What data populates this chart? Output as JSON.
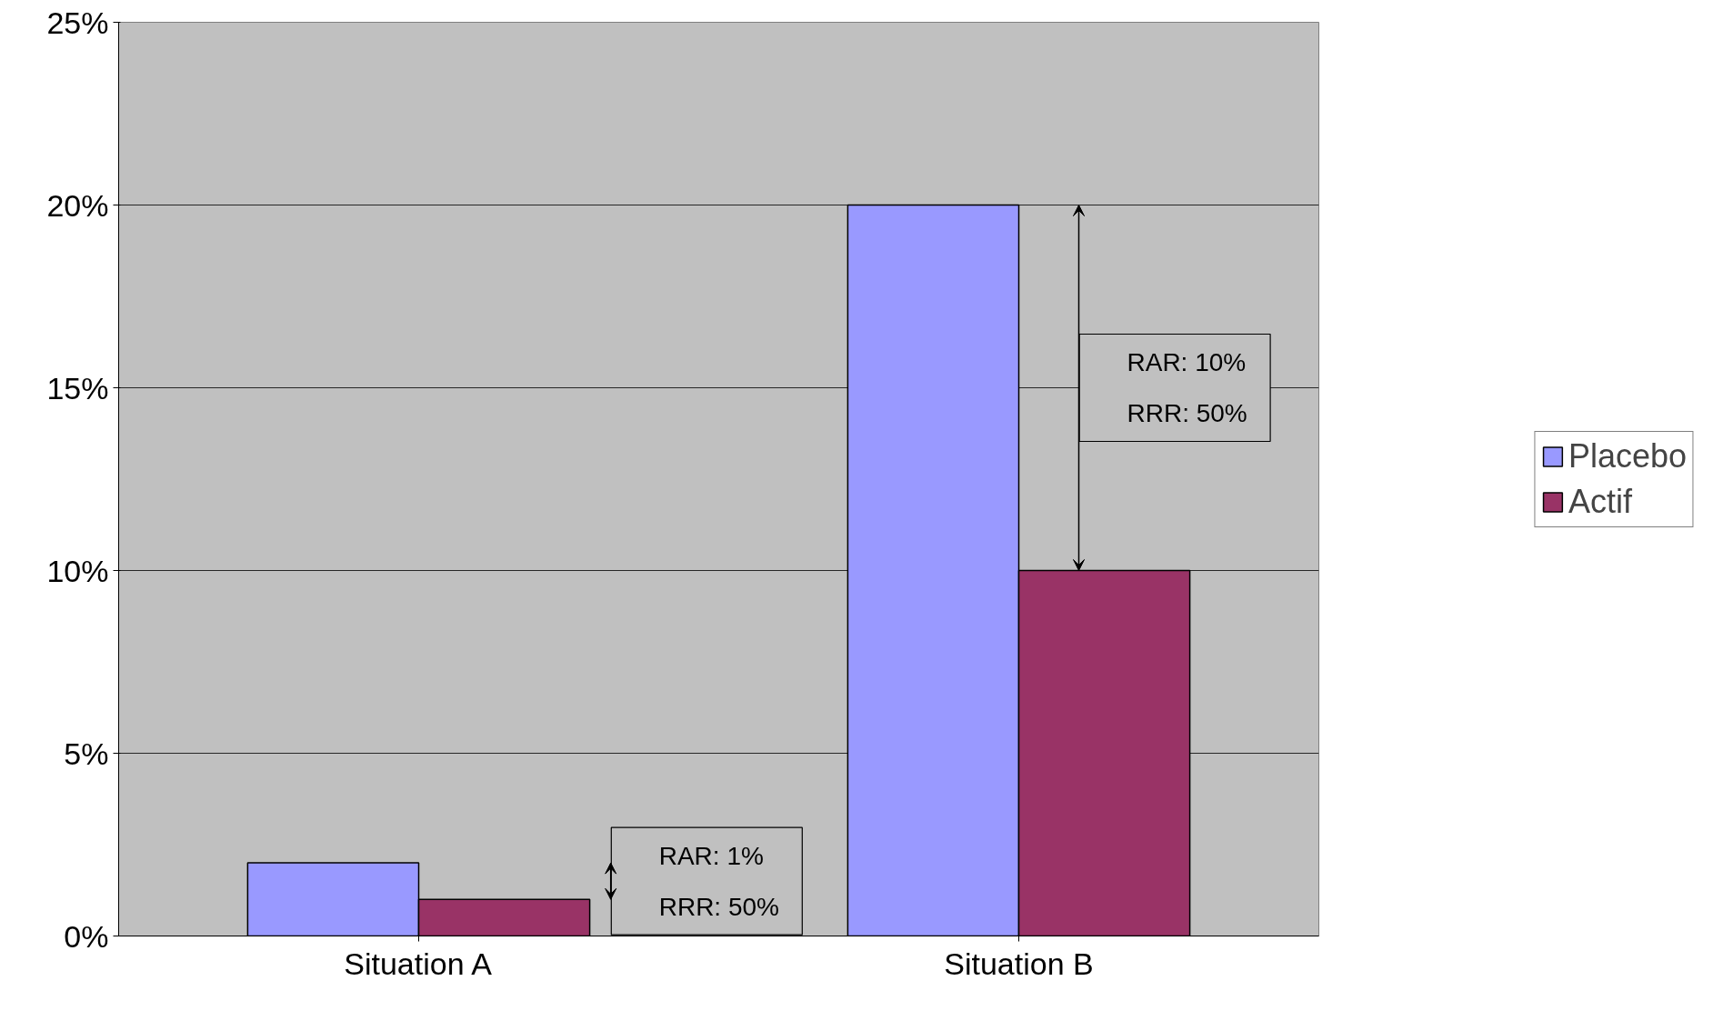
{
  "chart_data": {
    "type": "bar",
    "categories": [
      "Situation A",
      "Situation B"
    ],
    "series": [
      {
        "name": "Placebo",
        "color": "#9999ff",
        "values": [
          2,
          20
        ]
      },
      {
        "name": "Actif",
        "color": "#993366",
        "values": [
          1,
          10
        ]
      }
    ],
    "ylim": [
      0,
      25
    ],
    "yticks": [
      {
        "value": 0,
        "label": "0%"
      },
      {
        "value": 5,
        "label": "5%"
      },
      {
        "value": 10,
        "label": "10%"
      },
      {
        "value": 15,
        "label": "15%"
      },
      {
        "value": 20,
        "label": "20%"
      },
      {
        "value": 25,
        "label": "25%"
      }
    ],
    "grid": "y",
    "legend": "right",
    "annotations": [
      "RAR: 1%\nRRR: 50%",
      "RAR: 10%\nRRR: 50%"
    ]
  }
}
